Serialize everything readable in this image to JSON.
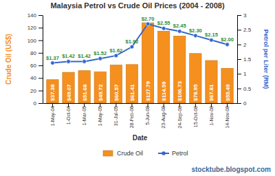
{
  "chart_data": {
    "type": "bar",
    "title": "Malaysia Petrol vs Crude Oil Prices (2004 - 2008)",
    "x_label": "Date",
    "y_label": "Crude Oil (US$)",
    "y2_label": "Petrol per Liter (RM)",
    "annotations": [
      "stocktube.blogspot.com"
    ],
    "categories": [
      "1-May-04",
      "1-Oct-04",
      "1-Mar-05",
      "1-May-05",
      "31-Jul-05",
      "28-Feb-06",
      "5-Jun-08",
      "23-Aug-08",
      "24-Sep-08",
      "15-Oct-08",
      "1-Nov-08",
      "14-Nov-08"
    ],
    "series": [
      {
        "name": "Crude Oil",
        "type": "bar",
        "color": "#f5901e",
        "values": [
          37.38,
          49.07,
          51.68,
          49.72,
          60.57,
          61.41,
          127.79,
          114.59,
          106.73,
          78.95,
          67.81,
          55.49
        ],
        "value_labels": [
          "$37.38",
          "$49.07",
          "$51.68",
          "$49.72",
          "$60.57",
          "$61.41",
          "$127.79",
          "$114.59",
          "$106.73",
          "$78.95",
          "$67.81",
          "$55.49"
        ]
      },
      {
        "name": "Petrol",
        "type": "line",
        "axis": "y2",
        "color": "#3366cc",
        "marker": "circle",
        "values": [
          1.37,
          1.42,
          1.42,
          1.52,
          1.62,
          1.92,
          2.7,
          2.55,
          2.45,
          2.3,
          2.15,
          2.0
        ],
        "value_labels": [
          "$1.37",
          "$1.42",
          "$1.42",
          "$1.52",
          "$1.62",
          "$1.92",
          "$2.70",
          "$2.55",
          "$2.45",
          "$2.30",
          "$2.15",
          "$2.00"
        ]
      }
    ],
    "ylim": [
      0,
      140
    ],
    "yticks": [
      0,
      20,
      40,
      60,
      80,
      100,
      120,
      140
    ],
    "y2lim": [
      0,
      3
    ],
    "y2ticks": [
      0,
      0.5,
      1,
      1.5,
      2,
      2.5,
      3
    ],
    "grid": false,
    "legend": "bottom",
    "data_labels": true
  }
}
